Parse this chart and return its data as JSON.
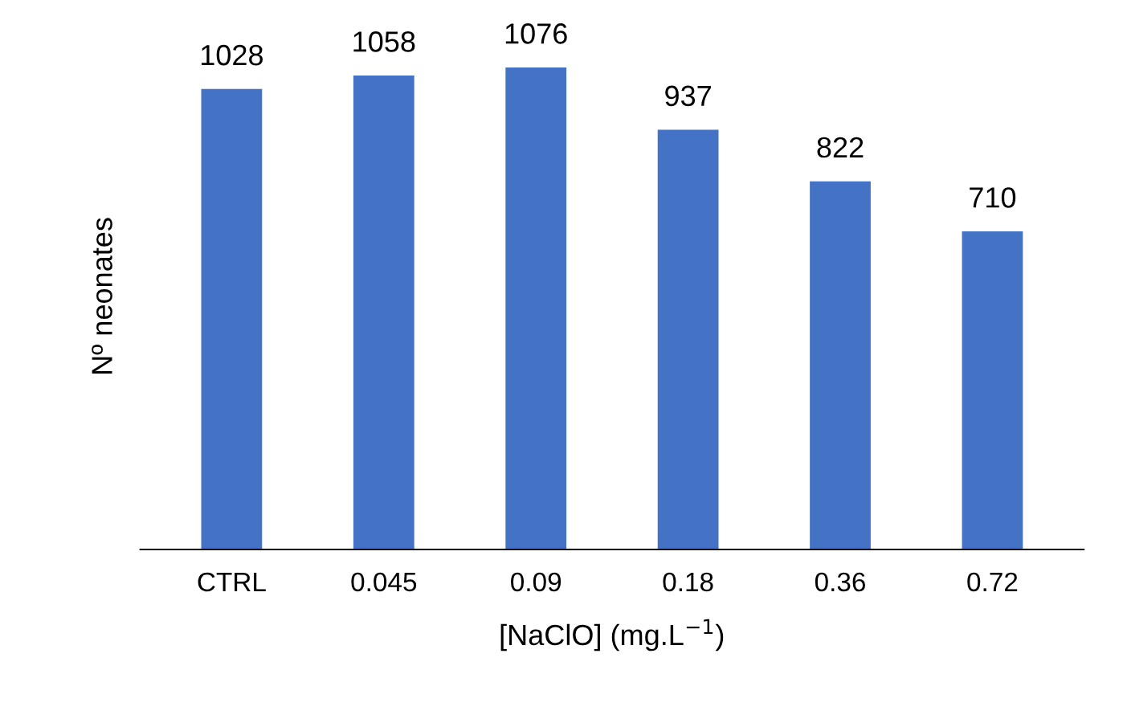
{
  "chart_data": {
    "type": "bar",
    "xlabel": "[NaClO] (mg.L$^{−1}$)",
    "ylabel": "Nº neonates",
    "categories": [
      "CTRL",
      "0.045",
      "0.09",
      "0.18",
      "0.36",
      "0.72"
    ],
    "values": [
      1028,
      1058,
      1076,
      937,
      822,
      710
    ],
    "color": "#4472c4",
    "data_labels": true,
    "tick_labels": "x",
    "grid": false,
    "legend": false
  }
}
